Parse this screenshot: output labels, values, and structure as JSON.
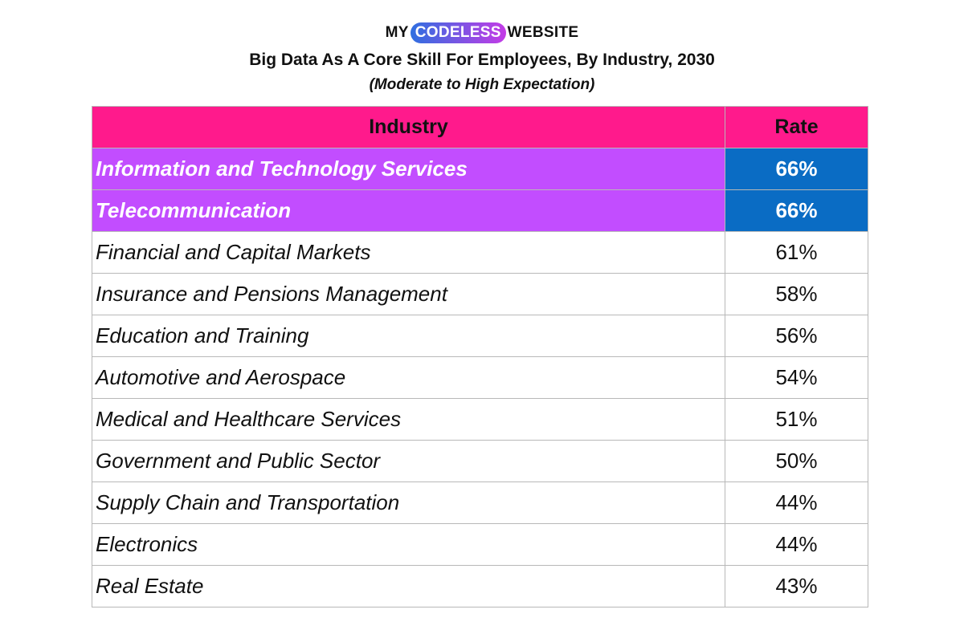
{
  "logo": {
    "prefix": "MY",
    "highlight": "CODELESS",
    "suffix": "WEBSITE",
    "highlight_gradient": [
      "#2f6fe0",
      "#c43be6"
    ]
  },
  "colors": {
    "header_bg": "#ff1a8c",
    "highlight_row_bg": "#c24dff",
    "highlight_rate_bg": "#0a6cc4"
  },
  "chart_data": {
    "type": "table",
    "title": "Big Data As A Core Skill For Employees, By Industry, 2030",
    "subtitle": "(Moderate to High Expectation)",
    "columns": [
      "Industry",
      "Rate"
    ],
    "rows": [
      {
        "industry": "Information and Technology Services",
        "rate": "66%",
        "value": 66,
        "highlight": true
      },
      {
        "industry": "Telecommunication",
        "rate": "66%",
        "value": 66,
        "highlight": true
      },
      {
        "industry": "Financial and Capital Markets",
        "rate": "61%",
        "value": 61,
        "highlight": false
      },
      {
        "industry": "Insurance and Pensions Management",
        "rate": "58%",
        "value": 58,
        "highlight": false
      },
      {
        "industry": "Education and Training",
        "rate": "56%",
        "value": 56,
        "highlight": false
      },
      {
        "industry": "Automotive and Aerospace",
        "rate": "54%",
        "value": 54,
        "highlight": false
      },
      {
        "industry": "Medical and Healthcare Services",
        "rate": "51%",
        "value": 51,
        "highlight": false
      },
      {
        "industry": "Government and Public Sector",
        "rate": "50%",
        "value": 50,
        "highlight": false
      },
      {
        "industry": "Supply Chain and Transportation",
        "rate": "44%",
        "value": 44,
        "highlight": false
      },
      {
        "industry": "Electronics",
        "rate": "44%",
        "value": 44,
        "highlight": false
      },
      {
        "industry": "Real Estate",
        "rate": "43%",
        "value": 43,
        "highlight": false
      }
    ]
  }
}
